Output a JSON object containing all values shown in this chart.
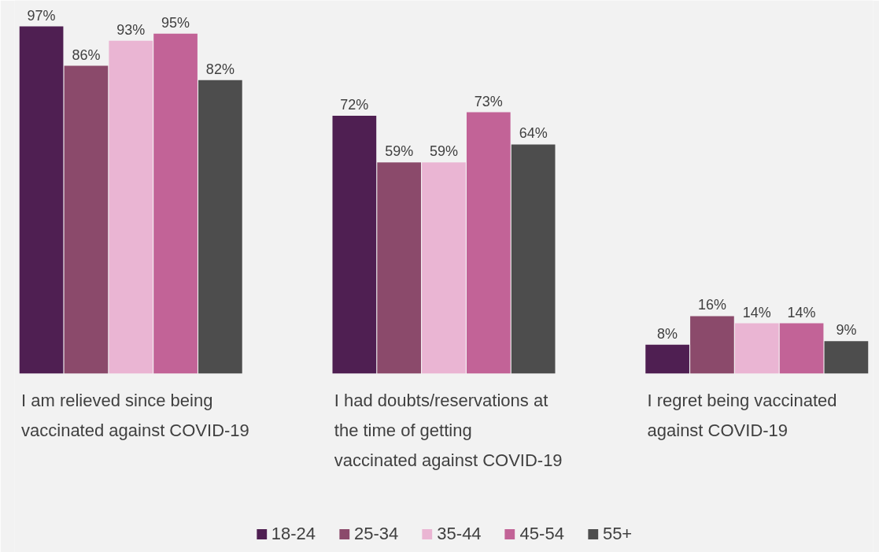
{
  "chart_data": {
    "type": "bar",
    "categories": [
      "I am relieved since being vaccinated against COVID-19",
      "I had doubts/reservations at the time of getting vaccinated against COVID-19",
      "I regret being vaccinated against COVID-19"
    ],
    "series": [
      {
        "name": "18-24",
        "color": "#4f1f52",
        "values": [
          97,
          72,
          8
        ],
        "value_labels": [
          "97%",
          "72%",
          "8%"
        ]
      },
      {
        "name": "25-34",
        "color": "#8b4a6b",
        "values": [
          86,
          59,
          16
        ],
        "value_labels": [
          "86%",
          "59%",
          "16%"
        ]
      },
      {
        "name": "35-44",
        "color": "#eab5d3",
        "values": [
          93,
          59,
          14
        ],
        "value_labels": [
          "93%",
          "59%",
          "14%"
        ]
      },
      {
        "name": "45-54",
        "color": "#c26397",
        "values": [
          95,
          73,
          14
        ],
        "value_labels": [
          "95%",
          "73%",
          "14%"
        ]
      },
      {
        "name": "55+",
        "color": "#4d4d4d",
        "values": [
          82,
          64,
          9
        ],
        "value_labels": [
          "82%",
          "64%",
          "9%"
        ]
      }
    ],
    "legend": "bottom",
    "grid": false
  }
}
